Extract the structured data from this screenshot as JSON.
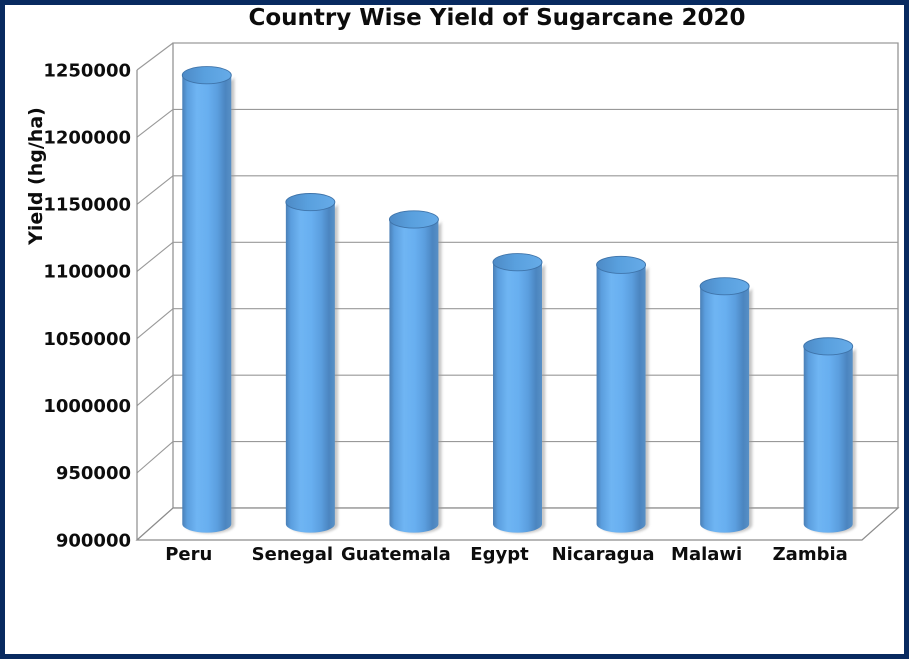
{
  "chart_data": {
    "type": "bar",
    "style": "3d-cylinder",
    "title": "Country Wise Yield of Sugarcane 2020",
    "categories": [
      "Peru",
      "Senegal",
      "Guatemala",
      "Egypt",
      "Nicaragua",
      "Malawi",
      "Zambia"
    ],
    "values": [
      1236000,
      1141000,
      1128000,
      1096000,
      1094000,
      1078000,
      1033000
    ],
    "xlabel": "",
    "ylabel": "Yield (hg/ha)",
    "ylim": [
      900000,
      1250000
    ],
    "ytick_step": 50000,
    "ytick_labels": [
      "900000",
      "950000",
      "1000000",
      "1050000",
      "1100000",
      "1150000",
      "1200000",
      "1250000"
    ],
    "grid": true,
    "legend": false,
    "colors": {
      "background": "#ffffff",
      "frame_border": "#082a60",
      "text": "#0d0d0d",
      "gridline": "#999999",
      "wall_edge": "#8c8c8c",
      "bar_body_light": "#6fb5f3",
      "bar_body_mid": "#5b9ede",
      "bar_body_dark": "#4a7fb6",
      "bar_top_light": "#66abe8",
      "bar_top_dark": "#4d8ac6",
      "bar_top_rim": "#3f74aa",
      "shadow": "#999999"
    }
  }
}
